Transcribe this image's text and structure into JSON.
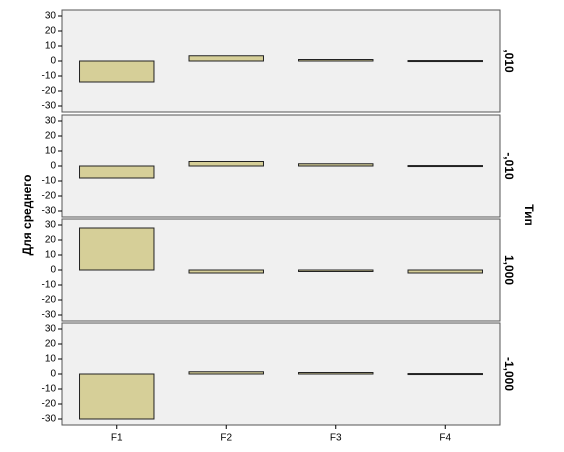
{
  "chart_data": {
    "type": "bar",
    "ylabel": "Для среднего",
    "facet_title": "Тип",
    "categories": [
      "F1",
      "F2",
      "F3",
      "F4"
    ],
    "color": "#d6cf98",
    "ylim": [
      -34,
      34
    ],
    "yticks": [
      -30,
      -20,
      -10,
      0,
      10,
      20,
      30
    ],
    "panels": [
      {
        "label": ",010",
        "values": [
          -14,
          3.5,
          1,
          0.3
        ]
      },
      {
        "label": "-,010",
        "values": [
          -8,
          3,
          1.5,
          0.3
        ]
      },
      {
        "label": "1,000",
        "values": [
          28,
          -2,
          -1,
          -2
        ]
      },
      {
        "label": "-1,000",
        "values": [
          -30,
          1.5,
          1,
          0.3
        ]
      }
    ]
  }
}
